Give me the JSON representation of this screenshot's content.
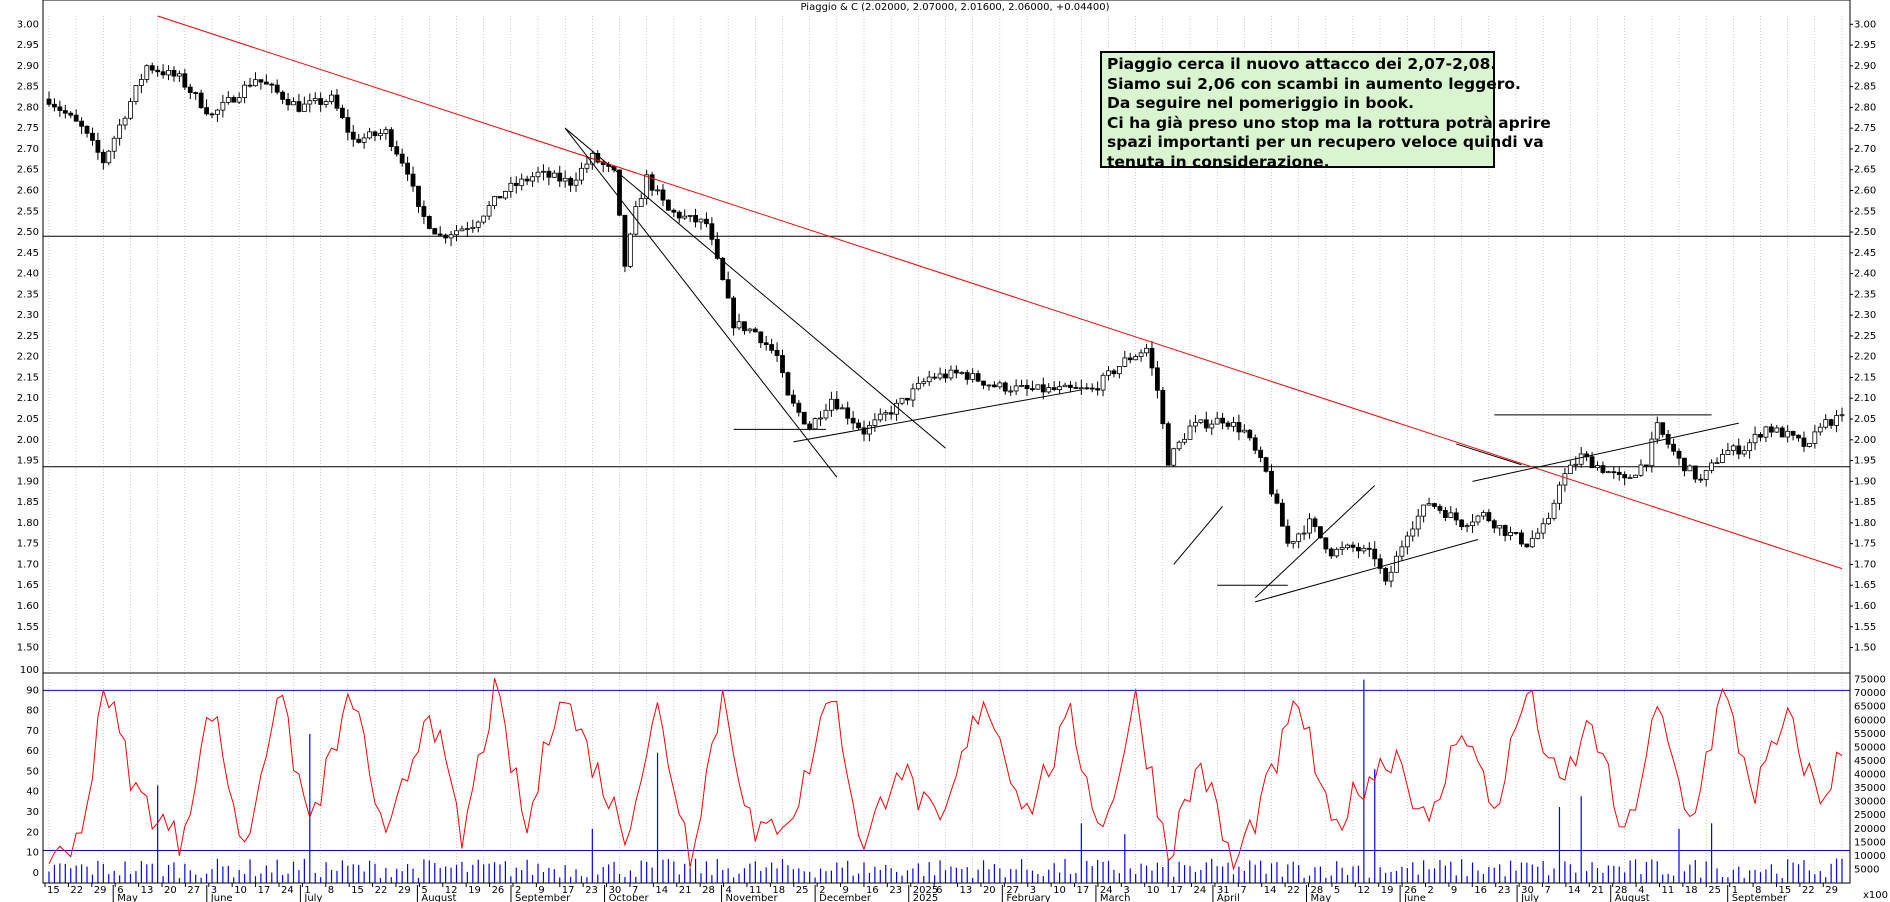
{
  "window": {
    "title": "Piaggio & C (2.02000, 2.07000, 2.01600, 2.06000, +0.04400)"
  },
  "annotation": {
    "lines": [
      "Piaggio cerca il nuovo attacco dei 2,07-2,08.",
      "Siamo sui 2,06 con scambi in aumento leggero.",
      "Da seguire nel pomeriggio in book.",
      "Ci ha già preso uno stop ma la rottura potrà aprire",
      "spazi importanti per un recupero veloce quindi va",
      "tenuta in considerazione."
    ]
  },
  "colors": {
    "trendline": "#ff0000",
    "candle": "#000000",
    "oscillator": "#ff0000",
    "volume": "#0000ff",
    "grid": "#aaaaaa",
    "note_bg": "#d8f5d0"
  },
  "price_axis": {
    "ticks": [
      "3.00",
      "2.95",
      "2.90",
      "2.85",
      "2.80",
      "2.75",
      "2.70",
      "2.65",
      "2.60",
      "2.55",
      "2.50",
      "2.45",
      "2.40",
      "2.35",
      "2.30",
      "2.25",
      "2.20",
      "2.15",
      "2.10",
      "2.05",
      "2.00",
      "1.95",
      "1.90",
      "1.85",
      "1.80",
      "1.75",
      "1.70",
      "1.65",
      "1.60",
      "1.55",
      "1.50"
    ]
  },
  "oscillator_axis": {
    "ticks": [
      "100",
      "90",
      "80",
      "70",
      "60",
      "50",
      "40",
      "30",
      "20",
      "10",
      "0"
    ]
  },
  "volume_axis": {
    "ticks": [
      "75000",
      "70000",
      "65000",
      "60000",
      "55000",
      "50000",
      "45000",
      "40000",
      "35000",
      "30000",
      "25000",
      "20000",
      "15000",
      "10000",
      "5000"
    ],
    "unit": "x100"
  },
  "day_labels": [
    "15",
    "22",
    "29",
    "6",
    "13",
    "20",
    "27",
    "3",
    "10",
    "17",
    "24",
    "1",
    "8",
    "15",
    "22",
    "29",
    "5",
    "12",
    "19",
    "26",
    "2",
    "9",
    "17",
    "23",
    "30",
    "7",
    "14",
    "21",
    "28",
    "4",
    "11",
    "18",
    "25",
    "2",
    "9",
    "16",
    "23",
    "2025",
    "6",
    "13",
    "20",
    "27",
    "3",
    "10",
    "17",
    "24",
    "3",
    "10",
    "17",
    "24",
    "31",
    "7",
    "14",
    "22",
    "28",
    "5",
    "12",
    "19",
    "26",
    "2",
    "9",
    "16",
    "23",
    "30",
    "7",
    "14",
    "21",
    "28",
    "4",
    "11",
    "18",
    "25",
    "1",
    "8",
    "15",
    "22",
    "29"
  ],
  "month_labels": [
    "May",
    "June",
    "July",
    "August",
    "September",
    "October",
    "November",
    "December",
    "2025",
    "February",
    "March",
    "April",
    "May",
    "June",
    "July",
    "August",
    "September"
  ],
  "chart_data": [
    {
      "type": "candlestick",
      "title": "Piaggio & C (2.02000, 2.07000, 2.01600, 2.06000, +0.04400)",
      "ylim": [
        1.47,
        3.02
      ],
      "y_ticks": [
        3.0,
        2.95,
        2.9,
        2.85,
        2.8,
        2.75,
        2.7,
        2.65,
        2.6,
        2.55,
        2.5,
        2.45,
        2.4,
        2.35,
        2.3,
        2.25,
        2.2,
        2.15,
        2.1,
        2.05,
        2.0,
        1.95,
        1.9,
        1.85,
        1.8,
        1.75,
        1.7,
        1.65,
        1.6,
        1.55,
        1.5
      ],
      "last_bar": {
        "open": 2.02,
        "high": 2.07,
        "low": 2.016,
        "close": 2.06,
        "change": 0.044
      },
      "horizontal_levels": [
        2.49,
        1.935
      ],
      "path_anchors": [
        [
          0,
          2.82
        ],
        [
          6,
          2.75
        ],
        [
          10,
          2.67
        ],
        [
          18,
          2.9
        ],
        [
          24,
          2.87
        ],
        [
          30,
          2.78
        ],
        [
          38,
          2.87
        ],
        [
          46,
          2.8
        ],
        [
          52,
          2.82
        ],
        [
          56,
          2.72
        ],
        [
          62,
          2.74
        ],
        [
          66,
          2.65
        ],
        [
          68,
          2.55
        ],
        [
          72,
          2.49
        ],
        [
          78,
          2.52
        ],
        [
          84,
          2.6
        ],
        [
          90,
          2.64
        ],
        [
          96,
          2.62
        ],
        [
          100,
          2.68
        ],
        [
          104,
          2.64
        ],
        [
          106,
          2.42
        ],
        [
          108,
          2.55
        ],
        [
          110,
          2.63
        ],
        [
          114,
          2.55
        ],
        [
          118,
          2.53
        ],
        [
          121,
          2.52
        ],
        [
          124,
          2.38
        ],
        [
          126,
          2.28
        ],
        [
          130,
          2.26
        ],
        [
          134,
          2.2
        ],
        [
          136,
          2.1
        ],
        [
          140,
          2.03
        ],
        [
          144,
          2.1
        ],
        [
          150,
          2.02
        ],
        [
          156,
          2.08
        ],
        [
          162,
          2.15
        ],
        [
          168,
          2.16
        ],
        [
          174,
          2.13
        ],
        [
          180,
          2.12
        ],
        [
          186,
          2.12
        ],
        [
          192,
          2.12
        ],
        [
          198,
          2.19
        ],
        [
          202,
          2.22
        ],
        [
          204,
          2.12
        ],
        [
          206,
          1.95
        ],
        [
          210,
          2.03
        ],
        [
          216,
          2.05
        ],
        [
          220,
          2.02
        ],
        [
          224,
          1.92
        ],
        [
          228,
          1.75
        ],
        [
          232,
          1.8
        ],
        [
          236,
          1.73
        ],
        [
          240,
          1.74
        ],
        [
          244,
          1.72
        ],
        [
          246,
          1.65
        ],
        [
          250,
          1.78
        ],
        [
          254,
          1.85
        ],
        [
          260,
          1.8
        ],
        [
          264,
          1.82
        ],
        [
          268,
          1.78
        ],
        [
          272,
          1.75
        ],
        [
          276,
          1.8
        ],
        [
          278,
          1.9
        ],
        [
          282,
          1.96
        ],
        [
          286,
          1.93
        ],
        [
          290,
          1.9
        ],
        [
          294,
          1.95
        ],
        [
          296,
          2.03
        ],
        [
          300,
          1.95
        ],
        [
          304,
          1.9
        ],
        [
          308,
          1.97
        ],
        [
          312,
          1.98
        ],
        [
          316,
          2.03
        ],
        [
          320,
          2.01
        ],
        [
          324,
          1.98
        ],
        [
          326,
          2.04
        ],
        [
          330,
          2.05
        ]
      ],
      "n_bars": 331,
      "trendlines": [
        {
          "name": "long-term resistance",
          "color": "#ff0000",
          "from": [
            20,
            3.02
          ],
          "to": [
            330,
            1.69
          ]
        },
        {
          "name": "falling",
          "from": [
            95,
            2.75
          ],
          "to": [
            145,
            1.91
          ]
        },
        {
          "name": "falling",
          "from": [
            95,
            2.75
          ],
          "to": [
            165,
            1.98
          ]
        },
        {
          "name": "support",
          "from": [
            126,
            2.025
          ],
          "to": [
            143,
            2.025
          ]
        },
        {
          "name": "rising",
          "from": [
            137,
            1.995
          ],
          "to": [
            190,
            2.12
          ]
        },
        {
          "name": "rising",
          "from": [
            207,
            1.7
          ],
          "to": [
            216,
            1.84
          ]
        },
        {
          "name": "support",
          "from": [
            215,
            1.65
          ],
          "to": [
            228,
            1.65
          ]
        },
        {
          "name": "rising",
          "from": [
            222,
            1.62
          ],
          "to": [
            244,
            1.89
          ]
        },
        {
          "name": "rising",
          "from": [
            222,
            1.61
          ],
          "to": [
            263,
            1.76
          ]
        },
        {
          "name": "falling",
          "from": [
            259,
            1.99
          ],
          "to": [
            271,
            1.94
          ]
        },
        {
          "name": "rising",
          "from": [
            262,
            1.9
          ],
          "to": [
            311,
            2.04
          ]
        },
        {
          "name": "resistance",
          "from": [
            266,
            2.06
          ],
          "to": [
            306,
            2.06
          ]
        }
      ]
    },
    {
      "type": "line",
      "ylim": [
        -5,
        102
      ],
      "y_ticks": [
        100,
        90,
        80,
        70,
        60,
        50,
        40,
        30,
        20,
        10,
        0
      ],
      "horizontal_levels": [
        90,
        11
      ],
      "series": [
        {
          "values_anchor": [
            [
              0,
              10
            ],
            [
              6,
              15
            ],
            [
              10,
              95
            ],
            [
              16,
              40
            ],
            [
              24,
              15
            ],
            [
              30,
              82
            ],
            [
              36,
              10
            ],
            [
              42,
              90
            ],
            [
              48,
              25
            ],
            [
              56,
              88
            ],
            [
              62,
              12
            ],
            [
              70,
              85
            ],
            [
              76,
              15
            ],
            [
              82,
              90
            ],
            [
              88,
              20
            ],
            [
              94,
              92
            ],
            [
              100,
              55
            ],
            [
              106,
              20
            ],
            [
              112,
              80
            ],
            [
              118,
              10
            ],
            [
              124,
              88
            ],
            [
              130,
              15
            ],
            [
              138,
              35
            ],
            [
              144,
              92
            ],
            [
              150,
              10
            ],
            [
              156,
              55
            ],
            [
              164,
              20
            ],
            [
              172,
              88
            ],
            [
              180,
              30
            ],
            [
              188,
              75
            ],
            [
              194,
              20
            ],
            [
              200,
              85
            ],
            [
              206,
              10
            ],
            [
              212,
              55
            ],
            [
              218,
              2
            ],
            [
              224,
              40
            ],
            [
              230,
              85
            ],
            [
              236,
              20
            ],
            [
              242,
              45
            ],
            [
              248,
              60
            ],
            [
              254,
              20
            ],
            [
              260,
              75
            ],
            [
              266,
              30
            ],
            [
              272,
              90
            ],
            [
              278,
              40
            ],
            [
              284,
              75
            ],
            [
              290,
              15
            ],
            [
              296,
              80
            ],
            [
              302,
              25
            ],
            [
              308,
              88
            ],
            [
              314,
              40
            ],
            [
              320,
              75
            ],
            [
              326,
              35
            ],
            [
              330,
              60
            ]
          ]
        }
      ]
    },
    {
      "type": "bar",
      "ylim": [
        0,
        80000
      ],
      "y_ticks": [
        75000,
        70000,
        65000,
        60000,
        55000,
        50000,
        45000,
        40000,
        35000,
        30000,
        25000,
        20000,
        15000,
        10000,
        5000
      ],
      "unit": "x100",
      "series": [
        {
          "name": "volume",
          "baseline": 6000,
          "spikes": [
            [
              20,
              36000
            ],
            [
              48,
              55000
            ],
            [
              100,
              20000
            ],
            [
              112,
              48000
            ],
            [
              190,
              22000
            ],
            [
              198,
              18000
            ],
            [
              242,
              75000
            ],
            [
              244,
              42000
            ],
            [
              278,
              28000
            ],
            [
              282,
              32000
            ],
            [
              300,
              20000
            ],
            [
              306,
              22000
            ]
          ]
        }
      ]
    }
  ]
}
